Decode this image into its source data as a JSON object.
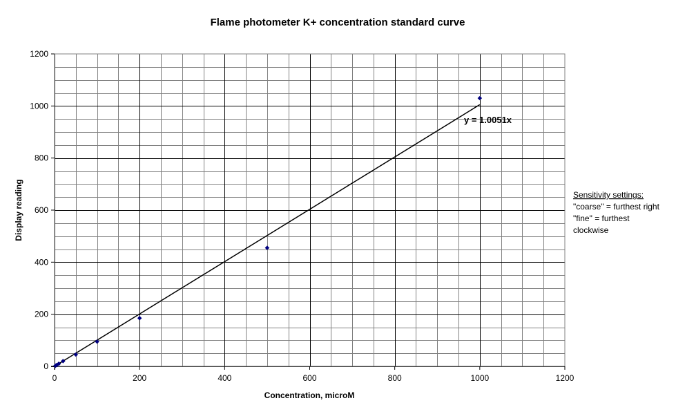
{
  "chart_data": {
    "type": "scatter",
    "title": "Flame photometer K+ concentration standard curve",
    "xlabel": "Concentration, microM",
    "ylabel": "Display reading",
    "xlim": [
      0,
      1200
    ],
    "ylim": [
      0,
      1200
    ],
    "xticks": [
      0,
      200,
      400,
      600,
      800,
      1000,
      1200
    ],
    "yticks": [
      0,
      200,
      400,
      600,
      800,
      1000,
      1200
    ],
    "grid": true,
    "series": [
      {
        "points": [
          {
            "x": 2,
            "y": 2
          },
          {
            "x": 5,
            "y": 5
          },
          {
            "x": 10,
            "y": 10
          },
          {
            "x": 20,
            "y": 20
          },
          {
            "x": 50,
            "y": 45
          },
          {
            "x": 100,
            "y": 95
          },
          {
            "x": 200,
            "y": 185
          },
          {
            "x": 500,
            "y": 455
          },
          {
            "x": 1000,
            "y": 1030
          }
        ],
        "color": "#000080"
      }
    ],
    "trendline": {
      "type": "linear-through-origin",
      "slope": 1.0051,
      "x_range": [
        0,
        1000
      ],
      "label": "y = 1.0051x"
    }
  },
  "note": {
    "heading": "Sensitivity settings:",
    "lines": [
      "\"coarse\" = furthest right",
      "\"fine\" = furthest",
      "clockwise"
    ]
  }
}
